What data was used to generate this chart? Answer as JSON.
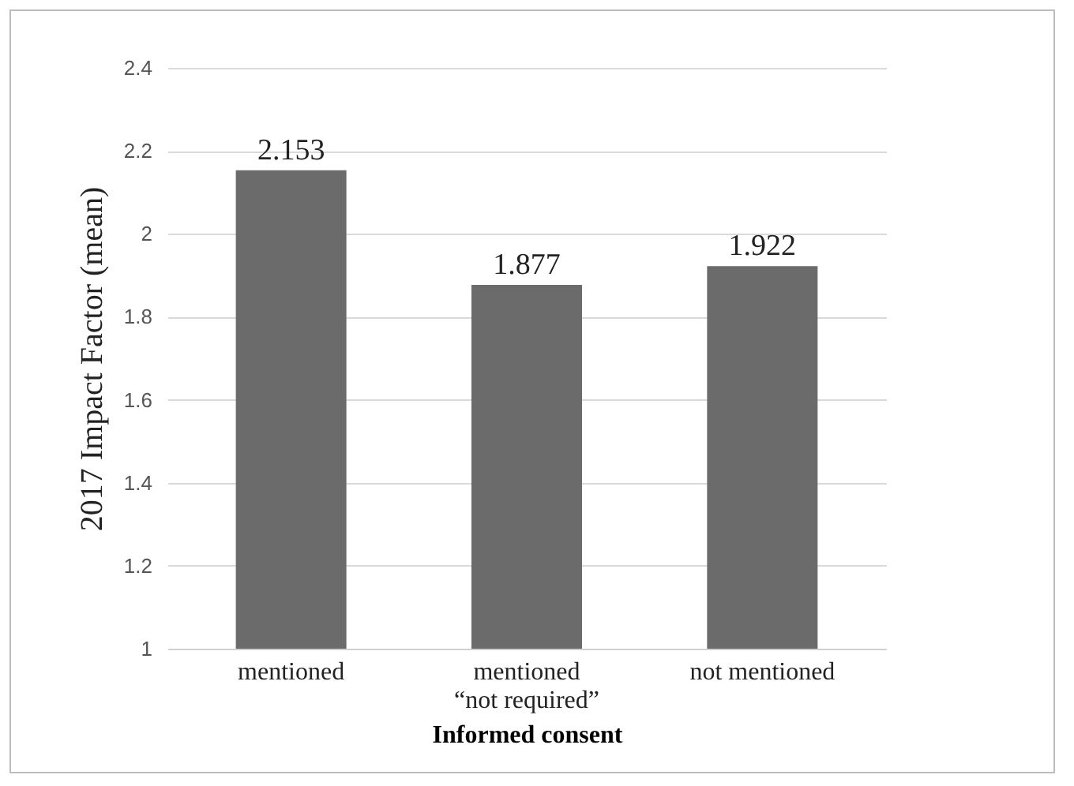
{
  "chart_data": {
    "type": "bar",
    "xlabel": "Informed consent",
    "ylabel": "2017 Impact Factor (mean)",
    "categories": [
      "mentioned",
      "mentioned\n“not required”",
      "not mentioned"
    ],
    "values": [
      2.153,
      1.877,
      1.922
    ],
    "color": "#6b6b6b",
    "ylim": [
      1,
      2.4
    ],
    "yticks": [
      1,
      1.2,
      1.4,
      1.6,
      1.8,
      2,
      2.2,
      2.4
    ],
    "grid": "y",
    "data_labels": true
  }
}
